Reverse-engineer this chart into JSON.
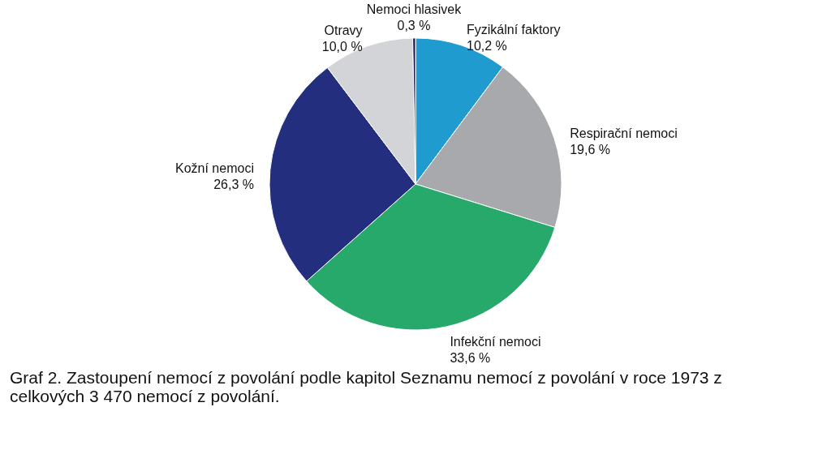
{
  "chart_data": {
    "type": "pie",
    "title": "Graf 2. Zastoupení nemocí z povolání podle kapitol Seznamu nemocí z povolání v roce 1973 z celkových 3 470 nemocí z povolání.",
    "categories": [
      "Fyzikální faktory",
      "Respirační nemoci",
      "Infekční nemoci",
      "Kožní nemoci",
      "Otravy",
      "Nemoci hlasivek"
    ],
    "values": [
      10.2,
      19.6,
      33.6,
      26.3,
      10.0,
      0.3
    ],
    "colors": [
      "#1f9bd0",
      "#a8a9ad",
      "#27a96b",
      "#232f7e",
      "#d3d4d8",
      "#1a1a4e"
    ],
    "value_labels": [
      "10,2 %",
      "19,6 %",
      "33,6 %",
      "26,3 %",
      "10,0 %",
      "0,3 %"
    ],
    "legend": false
  }
}
